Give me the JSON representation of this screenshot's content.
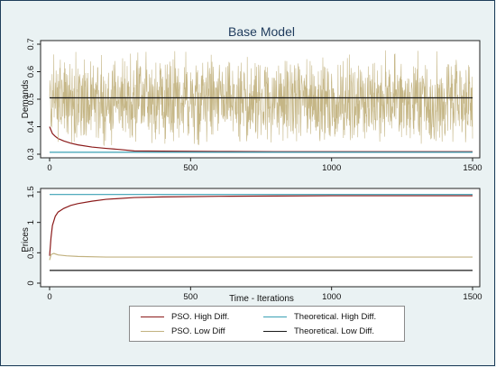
{
  "chart_data": [
    {
      "type": "line",
      "title": "Base Model",
      "xlabel": "",
      "ylabel": "Demands",
      "xlim": [
        0,
        1500
      ],
      "ylim": [
        0.3,
        0.7
      ],
      "x_ticks": [
        0,
        500,
        1000,
        1500
      ],
      "y_ticks": [
        0.3,
        0.4,
        0.5,
        0.6,
        0.7
      ],
      "grid": false,
      "series": [
        {
          "name": "PSO. High Diff.",
          "color": "#8b1a1a",
          "x": [
            0,
            10,
            20,
            30,
            50,
            75,
            100,
            150,
            200,
            250,
            300,
            400,
            600,
            800,
            1000,
            1200,
            1400,
            1500
          ],
          "values": [
            0.4,
            0.375,
            0.365,
            0.357,
            0.348,
            0.34,
            0.334,
            0.326,
            0.321,
            0.317,
            0.312,
            0.311,
            0.31,
            0.309,
            0.309,
            0.309,
            0.309,
            0.309
          ]
        },
        {
          "name": "PSO. Low Diff",
          "color": "#c2b280",
          "noisy": true,
          "x": [
            0,
            1500
          ],
          "values": [
            0.49,
            0.49
          ],
          "range": [
            0.33,
            0.68
          ]
        },
        {
          "name": "Theoretical. High Diff.",
          "color": "#3aa0b4",
          "x": [
            0,
            1500
          ],
          "values": [
            0.307,
            0.307
          ]
        },
        {
          "name": "Theoretical. Low Diff.",
          "color": "#1a1a1a",
          "x": [
            0,
            1500
          ],
          "values": [
            0.505,
            0.505
          ]
        }
      ]
    },
    {
      "type": "line",
      "title": "",
      "xlabel": "Time - Iterations",
      "ylabel": "Prices",
      "xlim": [
        0,
        1500
      ],
      "ylim": [
        0,
        1.5
      ],
      "x_ticks": [
        0,
        500,
        1000,
        1500
      ],
      "y_ticks": [
        0,
        0.5,
        1,
        1.5
      ],
      "grid": false,
      "series": [
        {
          "name": "PSO. High Diff.",
          "color": "#8b1a1a",
          "x": [
            0,
            5,
            10,
            20,
            30,
            50,
            75,
            100,
            150,
            200,
            300,
            400,
            600,
            800,
            1000,
            1200,
            1500
          ],
          "values": [
            0.45,
            0.75,
            0.95,
            1.1,
            1.17,
            1.23,
            1.28,
            1.31,
            1.35,
            1.38,
            1.41,
            1.42,
            1.43,
            1.435,
            1.44,
            1.44,
            1.44
          ]
        },
        {
          "name": "PSO. Low Diff",
          "color": "#c2b280",
          "x": [
            0,
            5,
            15,
            30,
            60,
            100,
            200,
            400,
            800,
            1200,
            1500
          ],
          "values": [
            0.38,
            0.47,
            0.49,
            0.465,
            0.45,
            0.44,
            0.43,
            0.43,
            0.43,
            0.43,
            0.43
          ]
        },
        {
          "name": "Theoretical. High Diff.",
          "color": "#3aa0b4",
          "x": [
            0,
            1500
          ],
          "values": [
            1.46,
            1.46
          ]
        },
        {
          "name": "Theoretical. Low Diff.",
          "color": "#1a1a1a",
          "x": [
            0,
            1500
          ],
          "values": [
            0.21,
            0.21
          ]
        }
      ]
    }
  ],
  "legend": {
    "placement": "bottom",
    "items": [
      {
        "label": "PSO. High Diff.",
        "color": "#8b1a1a"
      },
      {
        "label": "Theoretical. High Diff.",
        "color": "#3aa0b4"
      },
      {
        "label": "PSO. Low Diff",
        "color": "#c2b280"
      },
      {
        "label": "Theoretical. Low Diff.",
        "color": "#1a1a1a"
      }
    ]
  }
}
